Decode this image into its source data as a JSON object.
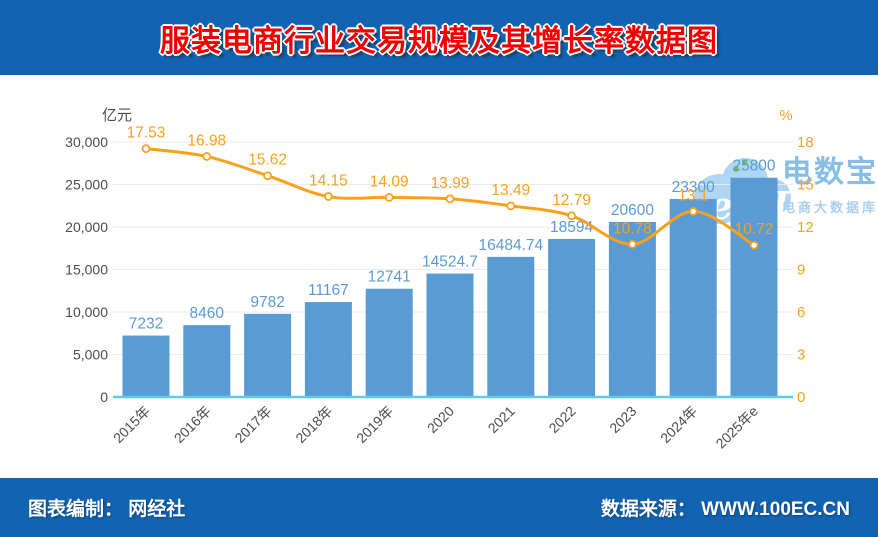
{
  "header": {
    "title": "服装电商行业交易规模及其增长率数据图"
  },
  "theme": {
    "band_color": "#1263b1"
  },
  "watermark": {
    "logo_text": "eDT",
    "brand": "电数宝",
    "tagline": "电商大数据库",
    "cloud_color": "#a9d3f4",
    "dot_color": "#6cbf3e"
  },
  "footer": {
    "left": "图表编制： 网经社",
    "right": "数据来源： WWW.100EC.CN"
  },
  "chart_data": {
    "type": "bar+line combo",
    "categories": [
      "2015年",
      "2016年",
      "2017年",
      "2018年",
      "2019年",
      "2020",
      "2021",
      "2022",
      "2023",
      "2024年",
      "2025年e"
    ],
    "series": [
      {
        "type": "bar",
        "axis": "left",
        "values": [
          7232,
          8460,
          9782,
          11167,
          12741,
          14524.7,
          16484.74,
          18594,
          20600,
          23300,
          25800
        ]
      },
      {
        "type": "line",
        "axis": "right",
        "values": [
          17.53,
          16.98,
          15.62,
          14.15,
          14.09,
          13.99,
          13.49,
          12.79,
          10.78,
          13.1,
          10.72
        ]
      }
    ],
    "left_axis": {
      "unit": "亿元",
      "min": 0,
      "max": 30000,
      "step": 5000,
      "tick_labels": [
        "0",
        "5,000",
        "10,000",
        "15,000",
        "20,000",
        "25,000",
        "30,000"
      ]
    },
    "right_axis": {
      "unit": "%",
      "min": 0,
      "max": 18,
      "step": 3,
      "tick_labels": [
        "0",
        "3",
        "6",
        "9",
        "12",
        "15",
        "18"
      ]
    },
    "grid": true,
    "legend": "none",
    "colors": {
      "bar": "#5b9bd5",
      "bar_label": "#5b9bd5",
      "line": "#f7a11c",
      "line_label": "#f7a11c",
      "right_axis_text": "#f7a11c",
      "left_axis_text": "#4d4d4d",
      "x_label_text": "#4d4d4d",
      "gridline": "#ebebeb",
      "zero_line": "#5fc9ef",
      "marker_fill": "#ffffff"
    }
  }
}
